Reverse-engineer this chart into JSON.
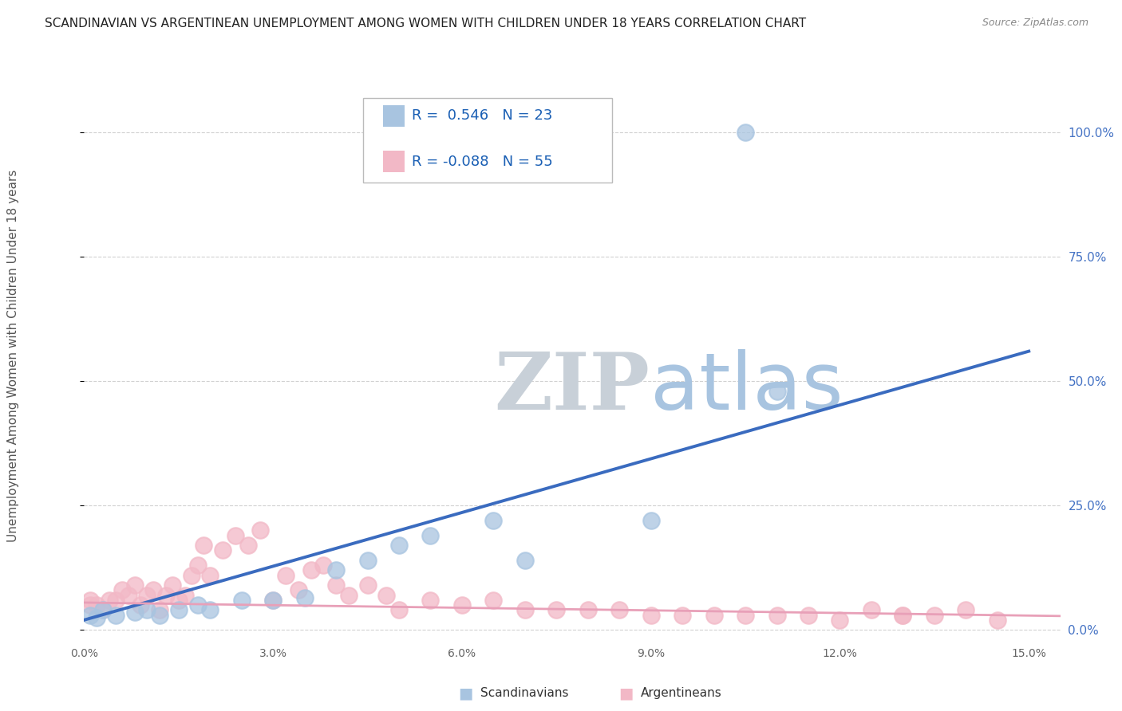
{
  "title": "SCANDINAVIAN VS ARGENTINEAN UNEMPLOYMENT AMONG WOMEN WITH CHILDREN UNDER 18 YEARS CORRELATION CHART",
  "source": "Source: ZipAtlas.com",
  "ylabel": "Unemployment Among Women with Children Under 18 years",
  "xlim": [
    0.0,
    0.155
  ],
  "ylim": [
    -0.02,
    1.08
  ],
  "xticks": [
    0.0,
    0.03,
    0.06,
    0.09,
    0.12,
    0.15
  ],
  "xticklabels": [
    "0.0%",
    "3.0%",
    "6.0%",
    "9.0%",
    "12.0%",
    "15.0%"
  ],
  "yticks_right": [
    0.0,
    0.25,
    0.5,
    0.75,
    1.0
  ],
  "yticklabels_right": [
    "0.0%",
    "25.0%",
    "50.0%",
    "75.0%",
    "100.0%"
  ],
  "blue_R": 0.546,
  "blue_N": 23,
  "pink_R": -0.088,
  "pink_N": 55,
  "blue_marker_color": "#a8c4e0",
  "pink_marker_color": "#f2b8c6",
  "blue_line_color": "#3a6bbf",
  "pink_line_color": "#e8a0b8",
  "scandinavian_points_x": [
    0.001,
    0.002,
    0.003,
    0.005,
    0.008,
    0.01,
    0.012,
    0.015,
    0.018,
    0.02,
    0.025,
    0.03,
    0.035,
    0.04,
    0.045,
    0.05,
    0.055,
    0.065,
    0.07,
    0.09,
    0.11,
    0.065,
    0.105
  ],
  "scandinavian_points_y": [
    0.03,
    0.025,
    0.04,
    0.03,
    0.035,
    0.04,
    0.03,
    0.04,
    0.05,
    0.04,
    0.06,
    0.06,
    0.065,
    0.12,
    0.14,
    0.17,
    0.19,
    0.22,
    0.14,
    0.22,
    0.48,
    1.0,
    1.0
  ],
  "argentinean_points_x": [
    0.001,
    0.001,
    0.002,
    0.003,
    0.004,
    0.005,
    0.006,
    0.007,
    0.008,
    0.009,
    0.01,
    0.011,
    0.012,
    0.013,
    0.014,
    0.015,
    0.016,
    0.017,
    0.018,
    0.019,
    0.02,
    0.022,
    0.024,
    0.026,
    0.028,
    0.03,
    0.032,
    0.034,
    0.036,
    0.038,
    0.04,
    0.042,
    0.045,
    0.048,
    0.05,
    0.055,
    0.06,
    0.065,
    0.07,
    0.075,
    0.08,
    0.085,
    0.09,
    0.095,
    0.1,
    0.105,
    0.11,
    0.115,
    0.12,
    0.125,
    0.13,
    0.135,
    0.14,
    0.145,
    0.13
  ],
  "argentinean_points_y": [
    0.05,
    0.06,
    0.05,
    0.04,
    0.06,
    0.06,
    0.08,
    0.07,
    0.09,
    0.05,
    0.07,
    0.08,
    0.04,
    0.07,
    0.09,
    0.06,
    0.07,
    0.11,
    0.13,
    0.17,
    0.11,
    0.16,
    0.19,
    0.17,
    0.2,
    0.06,
    0.11,
    0.08,
    0.12,
    0.13,
    0.09,
    0.07,
    0.09,
    0.07,
    0.04,
    0.06,
    0.05,
    0.06,
    0.04,
    0.04,
    0.04,
    0.04,
    0.03,
    0.03,
    0.03,
    0.03,
    0.03,
    0.03,
    0.02,
    0.04,
    0.03,
    0.03,
    0.04,
    0.02,
    0.03
  ],
  "blue_trend_x": [
    0.0,
    0.15
  ],
  "blue_trend_y": [
    0.02,
    0.56
  ],
  "pink_trend_x": [
    0.0,
    0.155
  ],
  "pink_trend_y": [
    0.055,
    0.028
  ],
  "watermark_zip": "ZIP",
  "watermark_atlas": "atlas",
  "watermark_color_zip": "#c8d0d8",
  "watermark_color_atlas": "#a8c4e0",
  "background_color": "#ffffff",
  "grid_color": "#cccccc",
  "title_fontsize": 11,
  "axis_label_fontsize": 11,
  "tick_fontsize": 10,
  "legend_fontsize": 13
}
